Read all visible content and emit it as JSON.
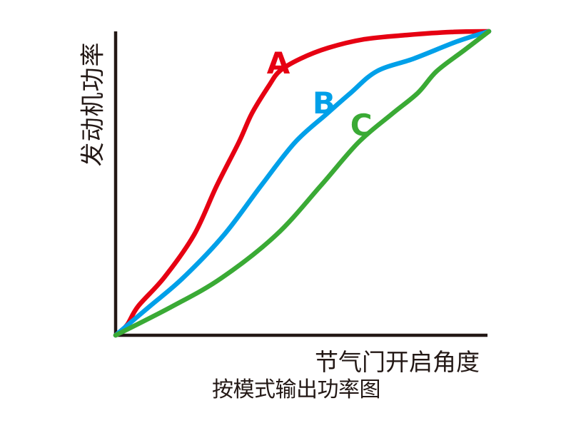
{
  "page": {
    "background": "#ffffff",
    "text_color": "#231815"
  },
  "chart_data": {
    "type": "line",
    "title": "按模式输出功率图",
    "xlabel": "节气门开启角度",
    "ylabel": "发动机功率",
    "x_range": [
      0,
      100
    ],
    "y_range": [
      0,
      100
    ],
    "grid": false,
    "legend_position": "inline-labels",
    "axes_color": "#231815",
    "description": "Engine power vs throttle opening angle for riding modes A, B, C; all curves start at origin and converge at full throttle / max power",
    "series": [
      {
        "name": "A",
        "color": "#e60012",
        "label_pos": {
          "x": 43.6,
          "y": 89.7
        },
        "points": [
          [
            0,
            0
          ],
          [
            3,
            3.3
          ],
          [
            6,
            9.5
          ],
          [
            13,
            19
          ],
          [
            21,
            33
          ],
          [
            27,
            49
          ],
          [
            33,
            63.5
          ],
          [
            36.5,
            73
          ],
          [
            41,
            82
          ],
          [
            44,
            87
          ],
          [
            49.5,
            91
          ],
          [
            57,
            94.6
          ],
          [
            66.5,
            97.4
          ],
          [
            78,
            98.8
          ],
          [
            90,
            99.8
          ],
          [
            100,
            100
          ]
        ]
      },
      {
        "name": "B",
        "color": "#00a0e9",
        "label_pos": {
          "x": 55.8,
          "y": 76.5
        },
        "points": [
          [
            0,
            0
          ],
          [
            9,
            9.4
          ],
          [
            18,
            18.8
          ],
          [
            29,
            33
          ],
          [
            39,
            49.3
          ],
          [
            48,
            63.4
          ],
          [
            56.5,
            72.8
          ],
          [
            63,
            79.8
          ],
          [
            70,
            86.9
          ],
          [
            80,
            91.1
          ],
          [
            91.5,
            96.7
          ],
          [
            100,
            100
          ]
        ]
      },
      {
        "name": "C",
        "color": "#3aaa35",
        "label_pos": {
          "x": 65.8,
          "y": 69.2
        },
        "points": [
          [
            0,
            0
          ],
          [
            15,
            9.4
          ],
          [
            28.3,
            18.8
          ],
          [
            43,
            33
          ],
          [
            55,
            49.3
          ],
          [
            65,
            63.4
          ],
          [
            74,
            72.8
          ],
          [
            81,
            79.8
          ],
          [
            86,
            86.9
          ],
          [
            93.5,
            93.9
          ],
          [
            100,
            100
          ]
        ]
      }
    ]
  }
}
